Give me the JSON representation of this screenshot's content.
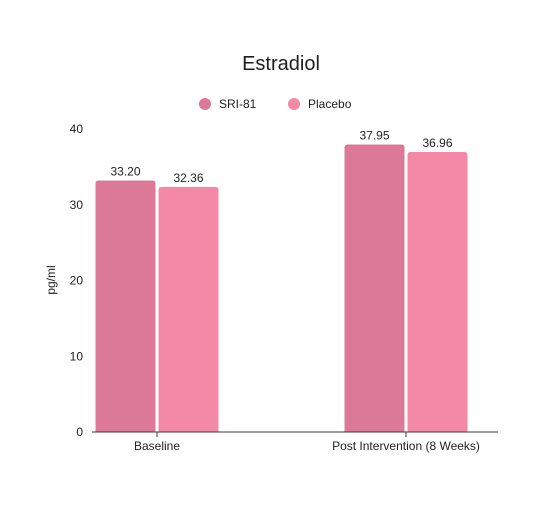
{
  "chart_data": {
    "type": "bar",
    "title": "Estradiol",
    "xlabel": "",
    "ylabel": "pg/ml",
    "categories": [
      "Baseline",
      "Post Intervention (8 Weeks)"
    ],
    "series": [
      {
        "name": "SRI-81",
        "values": [
          33.2,
          37.95
        ],
        "value_labels": [
          "33.20",
          "37.95"
        ],
        "color": "#dc7996"
      },
      {
        "name": "Placebo",
        "values": [
          32.36,
          36.96
        ],
        "value_labels": [
          "32.36",
          "36.96"
        ],
        "color": "#f388a7"
      }
    ],
    "ylim": [
      0,
      40
    ],
    "yticks": [
      0,
      10,
      20,
      30,
      40
    ],
    "grid": false,
    "legend_position": "top-center"
  }
}
